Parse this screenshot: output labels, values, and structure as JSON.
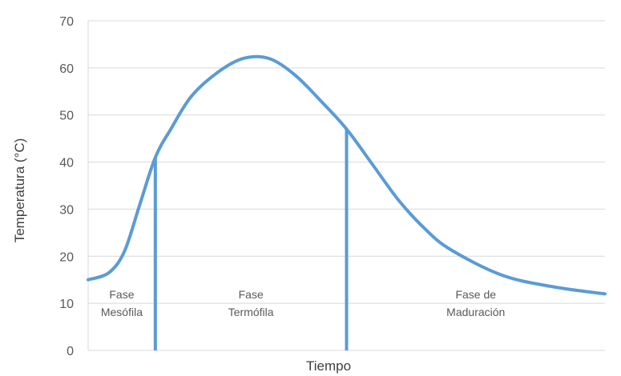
{
  "chart_data": {
    "type": "line",
    "title": "",
    "xlabel": "Tiempo",
    "ylabel": "Temperatura  (°C)",
    "ylim": [
      0,
      70
    ],
    "yticks": [
      0,
      10,
      20,
      30,
      40,
      50,
      60,
      70
    ],
    "grid": "horizontal",
    "color": "#5b9bd5",
    "series": [
      {
        "x": [
          0,
          0.04,
          0.07,
          0.1,
          0.13,
          0.16,
          0.2,
          0.25,
          0.3,
          0.35,
          0.4,
          0.45,
          0.5,
          0.55,
          0.6,
          0.65,
          0.7,
          0.8,
          0.9,
          1.0
        ],
        "values": [
          15,
          16.5,
          21,
          31,
          41,
          47,
          54,
          59,
          62,
          62,
          58.5,
          53,
          47,
          39.5,
          32,
          26,
          21.5,
          16,
          13.5,
          12
        ]
      }
    ],
    "dividers": [
      {
        "x": 0.13,
        "value": 41
      },
      {
        "x": 0.5,
        "value": 47
      }
    ],
    "phases": [
      {
        "x": 0.065,
        "lines": [
          "Fase",
          "Mesófila"
        ]
      },
      {
        "x": 0.315,
        "lines": [
          "Fase",
          "Termófila"
        ]
      },
      {
        "x": 0.75,
        "lines": [
          "Fase de",
          "Maduración"
        ]
      }
    ]
  }
}
